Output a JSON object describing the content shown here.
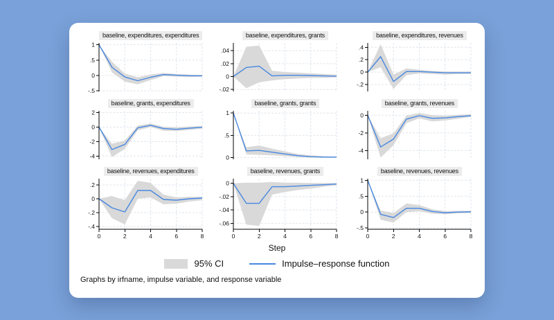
{
  "colors": {
    "page_background": "#7aa1d9",
    "card_background": "#ffffff",
    "ci_fill": "#d9d9d9",
    "irf_line": "#4787e0",
    "grid": "#dfe5ec",
    "axis": "#000000",
    "title_strip": "#ececec"
  },
  "xlabel": "Step",
  "legend": {
    "ci_label": "95% CI",
    "irf_label": "Impulse–response function"
  },
  "footnote": "Graphs by irfname, impulse variable, and response variable",
  "chart_data": [
    {
      "type": "line",
      "title": "baseline, expenditures, expenditures",
      "x": [
        0,
        1,
        2,
        3,
        4,
        5,
        6,
        7,
        8
      ],
      "xticks": [
        0,
        2,
        4,
        6,
        8
      ],
      "ylim": [
        -0.52,
        1.06
      ],
      "ytick_values": [
        1,
        0.5,
        0,
        -0.5
      ],
      "ytick_labels": [
        "1",
        ".5",
        "0",
        "-.5"
      ],
      "show_x_labels": false,
      "series": [
        {
          "name": "95% CI",
          "type": "band",
          "lo": [
            1,
            0.1,
            -0.2,
            -0.29,
            -0.15,
            -0.02,
            -0.04,
            -0.05,
            -0.04
          ],
          "hi": [
            1,
            0.45,
            0.06,
            -0.06,
            0.03,
            0.08,
            0.05,
            0.03,
            0.02
          ]
        },
        {
          "name": "Impulse–response function",
          "type": "line",
          "values": [
            1,
            0.27,
            -0.05,
            -0.17,
            -0.06,
            0.03,
            0.01,
            -0.01,
            -0.01
          ]
        }
      ]
    },
    {
      "type": "line",
      "title": "baseline, expenditures, grants",
      "x": [
        0,
        1,
        2,
        3,
        4,
        5,
        6,
        7,
        8
      ],
      "xticks": [
        0,
        2,
        4,
        6,
        8
      ],
      "ylim": [
        -0.023,
        0.052
      ],
      "ytick_values": [
        0.04,
        0.02,
        0,
        -0.02
      ],
      "ytick_labels": [
        ".04",
        ".02",
        "0",
        "-.02"
      ],
      "show_x_labels": false,
      "series": [
        {
          "name": "95% CI",
          "type": "band",
          "lo": [
            0,
            -0.018,
            -0.009,
            -0.006,
            -0.004,
            -0.003,
            -0.002,
            -0.002,
            -0.001
          ],
          "hi": [
            0,
            0.046,
            0.048,
            0.009,
            0.007,
            0.006,
            0.005,
            0.004,
            0.003
          ]
        },
        {
          "name": "Impulse–response function",
          "type": "line",
          "values": [
            0,
            0.014,
            0.016,
            0.001,
            0.002,
            0.002,
            0.0015,
            0.001,
            0.0005
          ]
        }
      ]
    },
    {
      "type": "line",
      "title": "baseline, expenditures, revenues",
      "x": [
        0,
        1,
        2,
        3,
        4,
        5,
        6,
        7,
        8
      ],
      "xticks": [
        0,
        2,
        4,
        6,
        8
      ],
      "ylim": [
        -0.31,
        0.47
      ],
      "ytick_values": [
        0.4,
        0.2,
        0,
        -0.2
      ],
      "ytick_labels": [
        ".4",
        ".2",
        "0",
        "-.2"
      ],
      "show_x_labels": false,
      "series": [
        {
          "name": "95% CI",
          "type": "band",
          "lo": [
            0,
            0.08,
            -0.27,
            -0.05,
            -0.02,
            -0.03,
            -0.04,
            -0.03,
            -0.03
          ],
          "hi": [
            0,
            0.45,
            -0.04,
            0.06,
            0.04,
            0.02,
            0.01,
            0.01,
            0.01
          ]
        },
        {
          "name": "Impulse–response function",
          "type": "line",
          "values": [
            0,
            0.25,
            -0.15,
            0.01,
            0.01,
            0.0,
            -0.01,
            -0.01,
            -0.01
          ]
        }
      ]
    },
    {
      "type": "line",
      "title": "baseline, grants, expenditures",
      "x": [
        0,
        1,
        2,
        3,
        4,
        5,
        6,
        7,
        8
      ],
      "xticks": [
        0,
        2,
        4,
        6,
        8
      ],
      "ylim": [
        -4.45,
        2.25
      ],
      "ytick_values": [
        2,
        0,
        -2,
        -4
      ],
      "ytick_labels": [
        "2",
        "0",
        "-2",
        "-4"
      ],
      "show_x_labels": false,
      "series": [
        {
          "name": "95% CI",
          "type": "band",
          "lo": [
            0,
            -4.15,
            -3.0,
            -0.45,
            0.0,
            -0.5,
            -0.55,
            -0.4,
            -0.2
          ],
          "hi": [
            0,
            -2.3,
            -1.85,
            0.2,
            0.5,
            0.05,
            -0.05,
            0.1,
            0.15
          ]
        },
        {
          "name": "Impulse–response function",
          "type": "line",
          "values": [
            0,
            -3.1,
            -2.4,
            -0.1,
            0.25,
            -0.2,
            -0.3,
            -0.15,
            -0.02
          ]
        }
      ]
    },
    {
      "type": "line",
      "title": "baseline, grants, grants",
      "x": [
        0,
        1,
        2,
        3,
        4,
        5,
        6,
        7,
        8
      ],
      "xticks": [
        0,
        2,
        4,
        6,
        8
      ],
      "ylim": [
        -0.04,
        1.05
      ],
      "ytick_values": [
        1,
        0.5,
        0
      ],
      "ytick_labels": [
        "1",
        ".5",
        "0"
      ],
      "show_x_labels": false,
      "series": [
        {
          "name": "95% CI",
          "type": "band",
          "lo": [
            1,
            0.07,
            0.06,
            0.05,
            0.03,
            0.01,
            0.0,
            0.0,
            0.0
          ],
          "hi": [
            1,
            0.23,
            0.27,
            0.2,
            0.14,
            0.08,
            0.05,
            0.03,
            0.02
          ]
        },
        {
          "name": "Impulse–response function",
          "type": "line",
          "values": [
            1,
            0.15,
            0.16,
            0.12,
            0.08,
            0.04,
            0.02,
            0.01,
            0.01
          ]
        }
      ]
    },
    {
      "type": "line",
      "title": "baseline, grants, revenues",
      "x": [
        0,
        1,
        2,
        3,
        4,
        5,
        6,
        7,
        8
      ],
      "xticks": [
        0,
        2,
        4,
        6,
        8
      ],
      "ylim": [
        -5.0,
        0.5
      ],
      "ytick_values": [
        0,
        -2,
        -4
      ],
      "ytick_labels": [
        "0",
        "-2",
        "-4"
      ],
      "show_x_labels": false,
      "series": [
        {
          "name": "95% CI",
          "type": "band",
          "lo": [
            0,
            -4.8,
            -3.4,
            -0.9,
            -0.35,
            -0.7,
            -0.6,
            -0.4,
            -0.2
          ],
          "hi": [
            0,
            -2.6,
            -2.05,
            -0.05,
            0.25,
            0.0,
            -0.05,
            0.05,
            0.1
          ]
        },
        {
          "name": "Impulse–response function",
          "type": "line",
          "values": [
            0,
            -3.6,
            -2.7,
            -0.45,
            -0.05,
            -0.35,
            -0.3,
            -0.15,
            -0.05
          ]
        }
      ]
    },
    {
      "type": "line",
      "title": "baseline, revenues, expenditures",
      "x": [
        0,
        1,
        2,
        3,
        4,
        5,
        6,
        7,
        8
      ],
      "xticks": [
        0,
        2,
        4,
        6,
        8
      ],
      "ylim": [
        -0.44,
        0.29
      ],
      "ytick_values": [
        0.2,
        0,
        -0.2,
        -0.4
      ],
      "ytick_labels": [
        ".2",
        "0",
        "-.2",
        "-.4"
      ],
      "show_x_labels": true,
      "series": [
        {
          "name": "95% CI",
          "type": "band",
          "lo": [
            0,
            -0.28,
            -0.37,
            0.0,
            0.02,
            -0.08,
            -0.07,
            -0.04,
            -0.02
          ],
          "hi": [
            0,
            0.04,
            -0.02,
            0.26,
            0.23,
            0.06,
            0.02,
            0.03,
            0.03
          ]
        },
        {
          "name": "Impulse–response function",
          "type": "line",
          "values": [
            0,
            -0.13,
            -0.19,
            0.12,
            0.12,
            -0.01,
            -0.02,
            0.0,
            0.01
          ]
        }
      ]
    },
    {
      "type": "line",
      "title": "baseline, revenues, grants",
      "x": [
        0,
        1,
        2,
        3,
        4,
        5,
        6,
        7,
        8
      ],
      "xticks": [
        0,
        2,
        4,
        6,
        8
      ],
      "ylim": [
        -0.069,
        0.007
      ],
      "ytick_values": [
        0,
        -0.02,
        -0.04,
        -0.06
      ],
      "ytick_labels": [
        "0",
        "-.02",
        "-.04",
        "-.06"
      ],
      "show_x_labels": true,
      "series": [
        {
          "name": "95% CI",
          "type": "band",
          "lo": [
            0,
            -0.062,
            -0.064,
            -0.017,
            -0.013,
            -0.01,
            -0.008,
            -0.005,
            -0.003
          ],
          "hi": [
            0,
            0.001,
            0.001,
            0.002,
            0.001,
            0.001,
            0.0005,
            0.0005,
            0.0
          ]
        },
        {
          "name": "Impulse–response function",
          "type": "line",
          "values": [
            0,
            -0.03,
            -0.03,
            -0.005,
            -0.005,
            -0.004,
            -0.003,
            -0.002,
            -0.001
          ]
        }
      ]
    },
    {
      "type": "line",
      "title": "baseline, revenues, revenues",
      "x": [
        0,
        1,
        2,
        3,
        4,
        5,
        6,
        7,
        8
      ],
      "xticks": [
        0,
        2,
        4,
        6,
        8
      ],
      "ylim": [
        -0.54,
        1.05
      ],
      "ytick_values": [
        1,
        0.5,
        0,
        -0.5
      ],
      "ytick_labels": [
        "1",
        ".5",
        "0",
        "-.5"
      ],
      "show_x_labels": true,
      "series": [
        {
          "name": "95% CI",
          "type": "band",
          "lo": [
            1,
            -0.24,
            -0.33,
            0.0,
            0.03,
            -0.05,
            -0.07,
            -0.04,
            -0.03
          ],
          "hi": [
            1,
            0.05,
            -0.03,
            0.27,
            0.22,
            0.09,
            0.03,
            0.04,
            0.04
          ]
        },
        {
          "name": "Impulse–response function",
          "type": "line",
          "values": [
            1,
            -0.07,
            -0.17,
            0.12,
            0.12,
            0.02,
            -0.02,
            0.0,
            0.01
          ]
        }
      ]
    }
  ]
}
